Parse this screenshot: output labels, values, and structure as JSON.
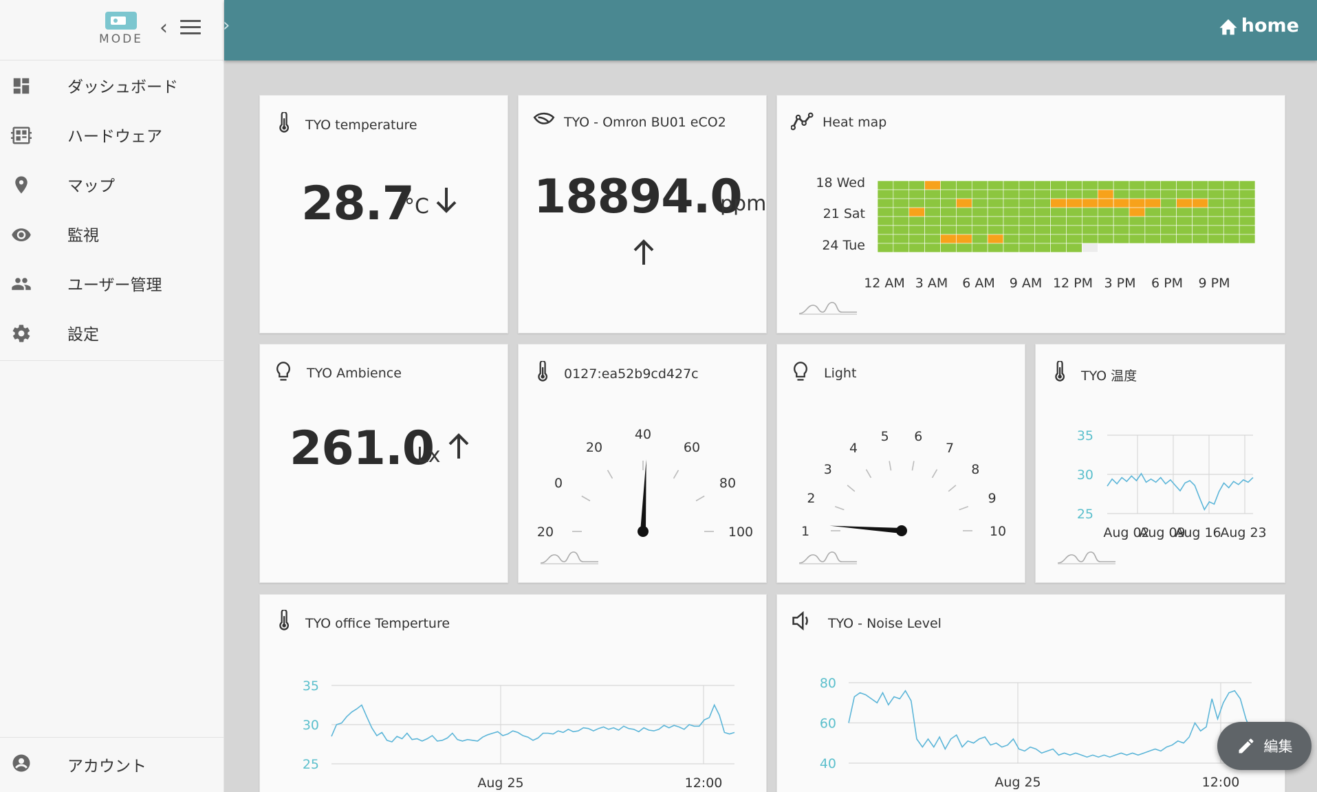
{
  "brand": {
    "logo_text": "MODE"
  },
  "header": {
    "home_label": "home"
  },
  "nav": [
    {
      "label": "ダッシュボード",
      "icon": "dashboard-icon"
    },
    {
      "label": "ハードウェア",
      "icon": "hardware-icon"
    },
    {
      "label": "マップ",
      "icon": "map-pin-icon"
    },
    {
      "label": "監視",
      "icon": "eye-icon"
    },
    {
      "label": "ユーザー管理",
      "icon": "users-icon"
    },
    {
      "label": "設定",
      "icon": "gear-icon"
    }
  ],
  "account": {
    "label": "アカウント",
    "icon": "account-icon"
  },
  "fab": {
    "label": "編集"
  },
  "cards": {
    "temperature": {
      "title": "TYO temperature",
      "value": "28.7",
      "unit": "°C",
      "trend": "down"
    },
    "eco2": {
      "title": "TYO - Omron BU01 eCO2",
      "value": "18894.0",
      "unit": "ppm",
      "trend": "up"
    },
    "heatmap": {
      "title": "Heat map"
    },
    "ambience": {
      "title": "TYO Ambience",
      "value": "261.0",
      "unit": "Lx",
      "trend": "up"
    },
    "gauge1": {
      "title": "0127:ea52b9cd427c"
    },
    "light": {
      "title": "Light"
    },
    "temp_jp": {
      "title": "TYO 温度"
    },
    "office_temp": {
      "title": "TYO office Temperture"
    },
    "noise": {
      "title": "TYO - Noise Level"
    }
  },
  "chart_data": [
    {
      "type": "heatmap",
      "id": "heatmap",
      "y_labels": [
        "18 Wed",
        "21 Sat",
        "24 Tue"
      ],
      "x_labels": [
        "12 AM",
        "3 AM",
        "6 AM",
        "9 AM",
        "12 PM",
        "3 PM",
        "6 PM",
        "9 PM"
      ],
      "rows": 8,
      "cols": 24,
      "colors": {
        "normal": "#8cc63f",
        "high": "#f7a21b",
        "empty": "#ececec"
      },
      "high_cells": [
        [
          0,
          3
        ],
        [
          1,
          14
        ],
        [
          2,
          5
        ],
        [
          2,
          11
        ],
        [
          2,
          12
        ],
        [
          2,
          13
        ],
        [
          2,
          14
        ],
        [
          2,
          15
        ],
        [
          2,
          16
        ],
        [
          2,
          17
        ],
        [
          2,
          19
        ],
        [
          2,
          20
        ],
        [
          3,
          2
        ],
        [
          3,
          16
        ],
        [
          6,
          4
        ],
        [
          6,
          5
        ],
        [
          6,
          7
        ]
      ],
      "empty_cells": [
        [
          7,
          13
        ],
        [
          7,
          14
        ],
        [
          7,
          15
        ],
        [
          7,
          16
        ],
        [
          7,
          17
        ],
        [
          7,
          18
        ],
        [
          7,
          19
        ],
        [
          7,
          20
        ],
        [
          7,
          21
        ],
        [
          7,
          22
        ],
        [
          7,
          23
        ]
      ],
      "last_row_cells": 13
    },
    {
      "type": "gauge",
      "id": "gauge1",
      "ticks": [
        "20",
        "0",
        "20",
        "40",
        "60",
        "80",
        "100"
      ],
      "min": -40,
      "max": 100,
      "value": 32
    },
    {
      "type": "gauge",
      "id": "light",
      "ticks": [
        "1",
        "2",
        "3",
        "4",
        "5",
        "6",
        "7",
        "8",
        "9",
        "10"
      ],
      "min": 1,
      "max": 10,
      "value": 1.2
    },
    {
      "type": "line",
      "id": "temp_jp",
      "y_ticks": [
        "35",
        "30",
        "25"
      ],
      "ylim": [
        25,
        35
      ],
      "x_labels": [
        "Aug 02",
        "Aug 09",
        "Aug 16",
        "Aug 23"
      ],
      "values": [
        28.5,
        29.4,
        28.8,
        29.6,
        29.1,
        29.8,
        29.2,
        30.1,
        29.0,
        29.4,
        29.0,
        29.6,
        28.8,
        29.3,
        28.6,
        27.9,
        28.9,
        29.2,
        28.6,
        27.0,
        25.5,
        26.5,
        26.2,
        27.8,
        28.9,
        28.3,
        29.1,
        28.7,
        29.3,
        29.0,
        29.6
      ]
    },
    {
      "type": "line",
      "id": "office_temp",
      "y_ticks": [
        "35",
        "30",
        "25"
      ],
      "ylim": [
        25,
        35
      ],
      "x_labels": [
        "Aug 25",
        "12:00"
      ],
      "values": [
        28.5,
        30.0,
        30.2,
        31.0,
        31.6,
        32.0,
        32.5,
        31.0,
        29.6,
        28.6,
        29.0,
        28.0,
        27.8,
        28.5,
        28.2,
        28.9,
        28.1,
        28.2,
        27.9,
        28.2,
        28.6,
        27.9,
        28.0,
        28.3,
        28.9,
        28.1,
        27.9,
        28.1,
        28.0,
        27.9,
        28.4,
        28.7,
        28.9,
        29.1,
        28.6,
        28.8,
        29.2,
        29.0,
        28.6,
        28.4,
        28.0,
        28.3,
        28.9,
        28.9,
        28.8,
        29.2,
        29.0,
        29.4,
        29.1,
        29.2,
        29.6,
        29.5,
        29.2,
        29.5,
        29.7,
        29.4,
        29.6,
        29.3,
        29.8,
        29.5,
        29.4,
        29.1,
        29.6,
        29.3,
        29.2,
        29.4,
        29.9,
        29.6,
        29.9,
        29.7,
        29.4,
        30.0,
        29.8,
        29.8,
        30.6,
        30.9,
        32.5,
        31.2,
        29.0,
        28.8,
        29.0
      ]
    },
    {
      "type": "line",
      "id": "noise",
      "y_ticks": [
        "80",
        "60",
        "40"
      ],
      "ylim": [
        40,
        80
      ],
      "x_labels": [
        "Aug 25",
        "12:00"
      ],
      "values": [
        60,
        73,
        75,
        74,
        72,
        70,
        75,
        69,
        73,
        72,
        76,
        71,
        52,
        48,
        52,
        48,
        53,
        47,
        52,
        54,
        48,
        51,
        50,
        52,
        53,
        49,
        50,
        48,
        49,
        52,
        47,
        46,
        48,
        47,
        45,
        46,
        47,
        44,
        45,
        44,
        45,
        44,
        43,
        44,
        43,
        44,
        43,
        44,
        45,
        44,
        45,
        44,
        45,
        46,
        47,
        46,
        48,
        49,
        51,
        50,
        53,
        60,
        56,
        58,
        72,
        62,
        70,
        75,
        76,
        72,
        62,
        55
      ]
    }
  ]
}
